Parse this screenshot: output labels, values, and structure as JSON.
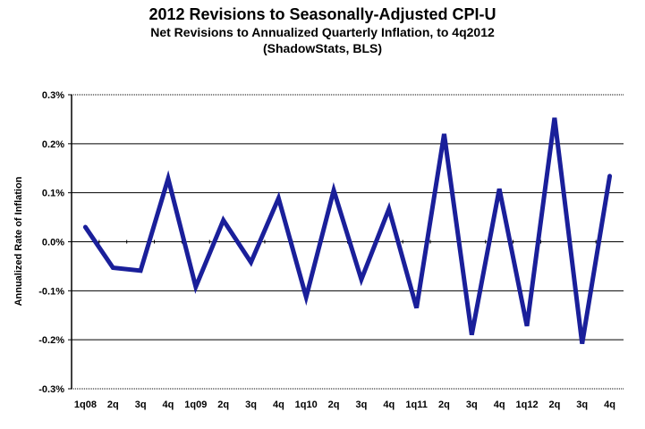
{
  "chart_data": {
    "type": "line",
    "title": "2012 Revisions to Seasonally-Adjusted CPI-U",
    "subtitle": "Net Revisions to Annualized Quarterly Inflation, to 4q2012",
    "source": "(ShadowStats, BLS)",
    "xlabel": "",
    "ylabel": "Annualized Rate of Inflation",
    "ylim": [
      -0.3,
      0.3
    ],
    "yticks": [
      0.3,
      0.2,
      0.1,
      0.0,
      -0.1,
      -0.2,
      -0.3
    ],
    "ytick_labels": [
      "0.3%",
      "0.2%",
      "0.1%",
      "0.0%",
      "-0.1%",
      "-0.2%",
      "-0.3%"
    ],
    "grid": true,
    "categories": [
      "1q08",
      "2q",
      "3q",
      "4q",
      "1q09",
      "2q",
      "3q",
      "4q",
      "1q10",
      "2q",
      "3q",
      "4q",
      "1q11",
      "2q",
      "3q",
      "4q",
      "1q12",
      "2q",
      "3q",
      "4q"
    ],
    "series": [
      {
        "name": "Net Revision",
        "color": "#1a1f9a",
        "values": [
          0.03,
          -0.053,
          -0.059,
          0.129,
          -0.092,
          0.044,
          -0.042,
          0.089,
          -0.113,
          0.105,
          -0.077,
          0.067,
          -0.135,
          0.22,
          -0.19,
          0.108,
          -0.172,
          0.253,
          -0.208,
          0.134
        ]
      }
    ]
  }
}
